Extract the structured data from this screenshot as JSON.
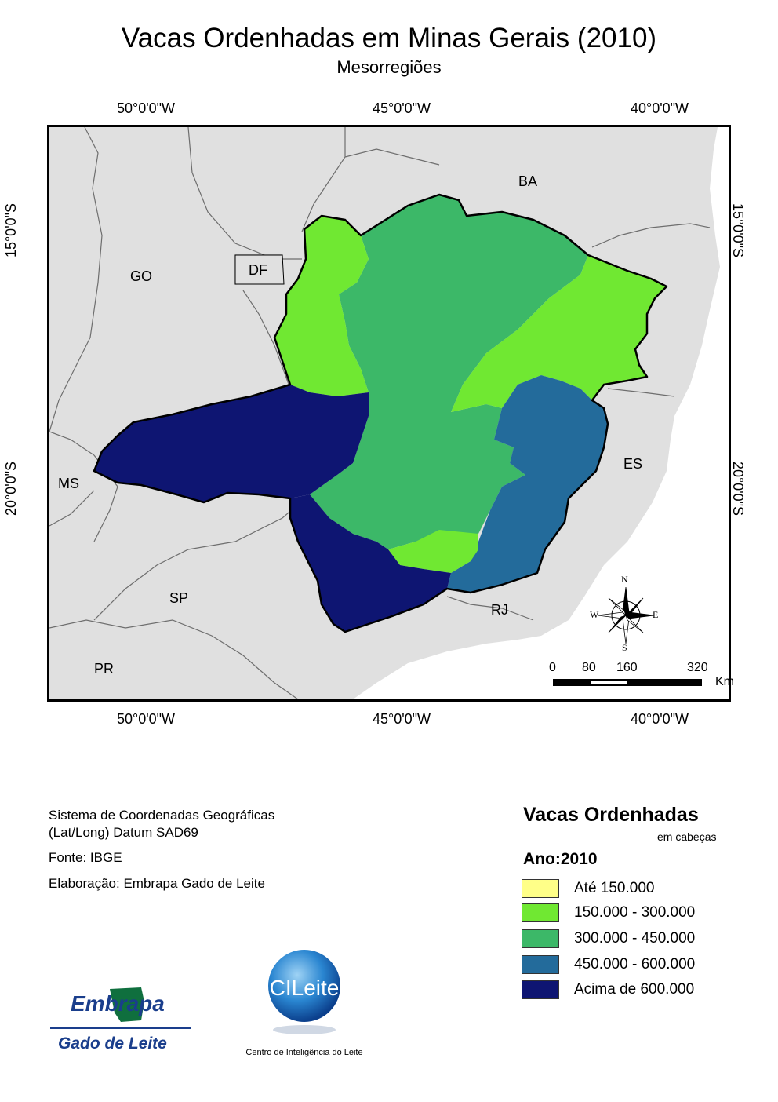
{
  "title": "Vacas Ordenhadas em Minas Gerais (2010)",
  "subtitle": "Mesorregiões",
  "grid_labels": {
    "lon": [
      "50°0'0\"W",
      "45°0'0\"W",
      "40°0'0\"W"
    ],
    "lat": [
      "15°0'0\"S",
      "20°0'0\"S"
    ]
  },
  "states": [
    "BA",
    "GO",
    "DF",
    "MS",
    "ES",
    "SP",
    "RJ",
    "PR"
  ],
  "compass": {
    "n": "N",
    "s": "S",
    "e": "E",
    "w": "W"
  },
  "scale_bar": {
    "ticks": [
      "0",
      "80",
      "160",
      "320"
    ],
    "unit": "Km"
  },
  "metadata": {
    "crs_line1": "Sistema de Coordenadas Geográficas",
    "crs_line2": "(Lat/Long) Datum SAD69",
    "source": "Fonte: IBGE",
    "author": "Elaboração: Embrapa Gado de Leite"
  },
  "legend": {
    "title": "Vacas Ordenhadas",
    "unit": "em cabeças",
    "year_label": "Ano:2010",
    "classes": [
      {
        "label": "Até 150.000",
        "color": "#ffff88"
      },
      {
        "label": "150.000 - 300.000",
        "color": "#70e832"
      },
      {
        "label": "300.000 - 450.000",
        "color": "#3cb868"
      },
      {
        "label": "450.000 - 600.000",
        "color": "#236b9b"
      },
      {
        "label": "Acima de 600.000",
        "color": "#0e1572"
      }
    ]
  },
  "logos": {
    "embrapa_word": "Embrapa",
    "embrapa_unit": "Gado de Leite",
    "cileite_word": "CILeite",
    "cileite_caption": "Centro de Inteligência do Leite"
  },
  "colors": {
    "background_land": "#e0e0e0",
    "state_border": "#6e6e6e"
  }
}
